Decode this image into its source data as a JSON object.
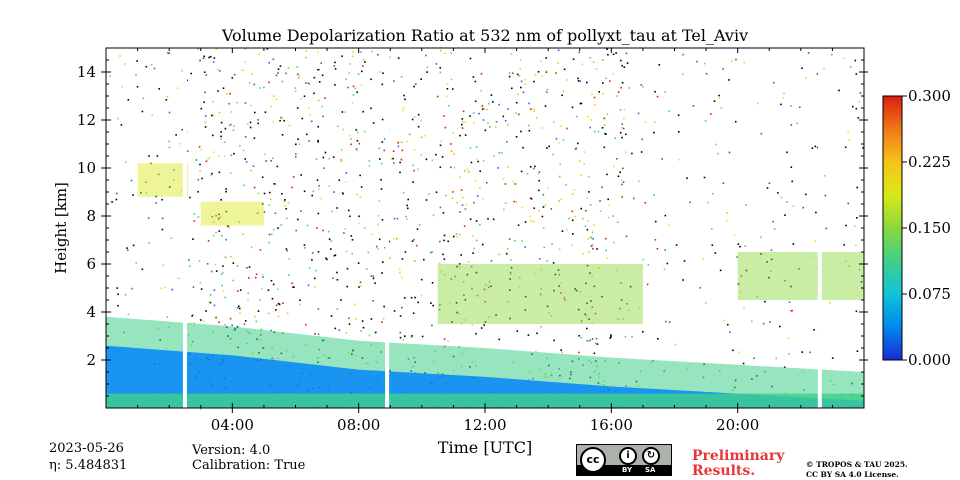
{
  "chart_data": {
    "type": "heatmap",
    "title": "Volume Depolarization Ratio at 532 nm of pollyxt_tau at Tel_Aviv",
    "xlabel": "Time [UTC]",
    "ylabel": "Height [km]",
    "x_range_hours": [
      0,
      24
    ],
    "y_range_km": [
      0,
      15
    ],
    "x_ticks": [
      {
        "hour": 4,
        "label": "04:00"
      },
      {
        "hour": 8,
        "label": "08:00"
      },
      {
        "hour": 12,
        "label": "12:00"
      },
      {
        "hour": 16,
        "label": "16:00"
      },
      {
        "hour": 20,
        "label": "20:00"
      }
    ],
    "y_ticks": [
      {
        "km": 2,
        "label": "2"
      },
      {
        "km": 4,
        "label": "4"
      },
      {
        "km": 6,
        "label": "6"
      },
      {
        "km": 8,
        "label": "8"
      },
      {
        "km": 10,
        "label": "10"
      },
      {
        "km": 12,
        "label": "12"
      },
      {
        "km": 14,
        "label": "14"
      }
    ],
    "colorbar": {
      "min": 0.0,
      "max": 0.3,
      "colors": [
        "#1a2cd6",
        "#0088ee",
        "#10c4d8",
        "#3fd08a",
        "#8ad83a",
        "#d8e81a",
        "#f6c418",
        "#f07818",
        "#dc1e12"
      ],
      "ticks": [
        "0.000",
        "0.075",
        "0.150",
        "0.225",
        "0.300"
      ]
    },
    "data_gaps_hours": [
      2.5,
      8.9,
      22.6
    ],
    "boundary_layer_top_km": [
      {
        "hour": 0,
        "km": 2.6
      },
      {
        "hour": 4,
        "km": 2.2
      },
      {
        "hour": 8,
        "km": 1.6
      },
      {
        "hour": 12,
        "km": 1.3
      },
      {
        "hour": 16,
        "km": 0.9
      },
      {
        "hour": 20,
        "km": 0.6
      },
      {
        "hour": 24,
        "km": 0.3
      }
    ],
    "aerosol_features": [
      {
        "hour_start": 3.0,
        "hour_end": 5.0,
        "km_low": 7.6,
        "km_high": 8.6,
        "level": 0.19
      },
      {
        "hour_start": 1.0,
        "hour_end": 2.6,
        "km_low": 8.8,
        "km_high": 10.2,
        "level": 0.17
      },
      {
        "hour_start": 10.5,
        "hour_end": 17.0,
        "km_low": 3.5,
        "km_high": 6.0,
        "level": 0.16
      },
      {
        "hour_start": 20.0,
        "hour_end": 24.0,
        "km_low": 4.5,
        "km_high": 6.5,
        "level": 0.15
      }
    ]
  },
  "footer": {
    "date": "2023-05-26",
    "eta": "η: 5.484831",
    "version": "Version: 4.0",
    "calibration": "Calibration: True",
    "preliminary_line1": "Preliminary",
    "preliminary_line2": "Results.",
    "copyright_line1": "© TROPOS & TAU 2025.",
    "copyright_line2": "CC BY SA 4.0 License."
  },
  "license_badge": {
    "cc": "cc",
    "by": "BY",
    "sa": "SA",
    "by_glyph": "i",
    "sa_glyph": "↻"
  }
}
